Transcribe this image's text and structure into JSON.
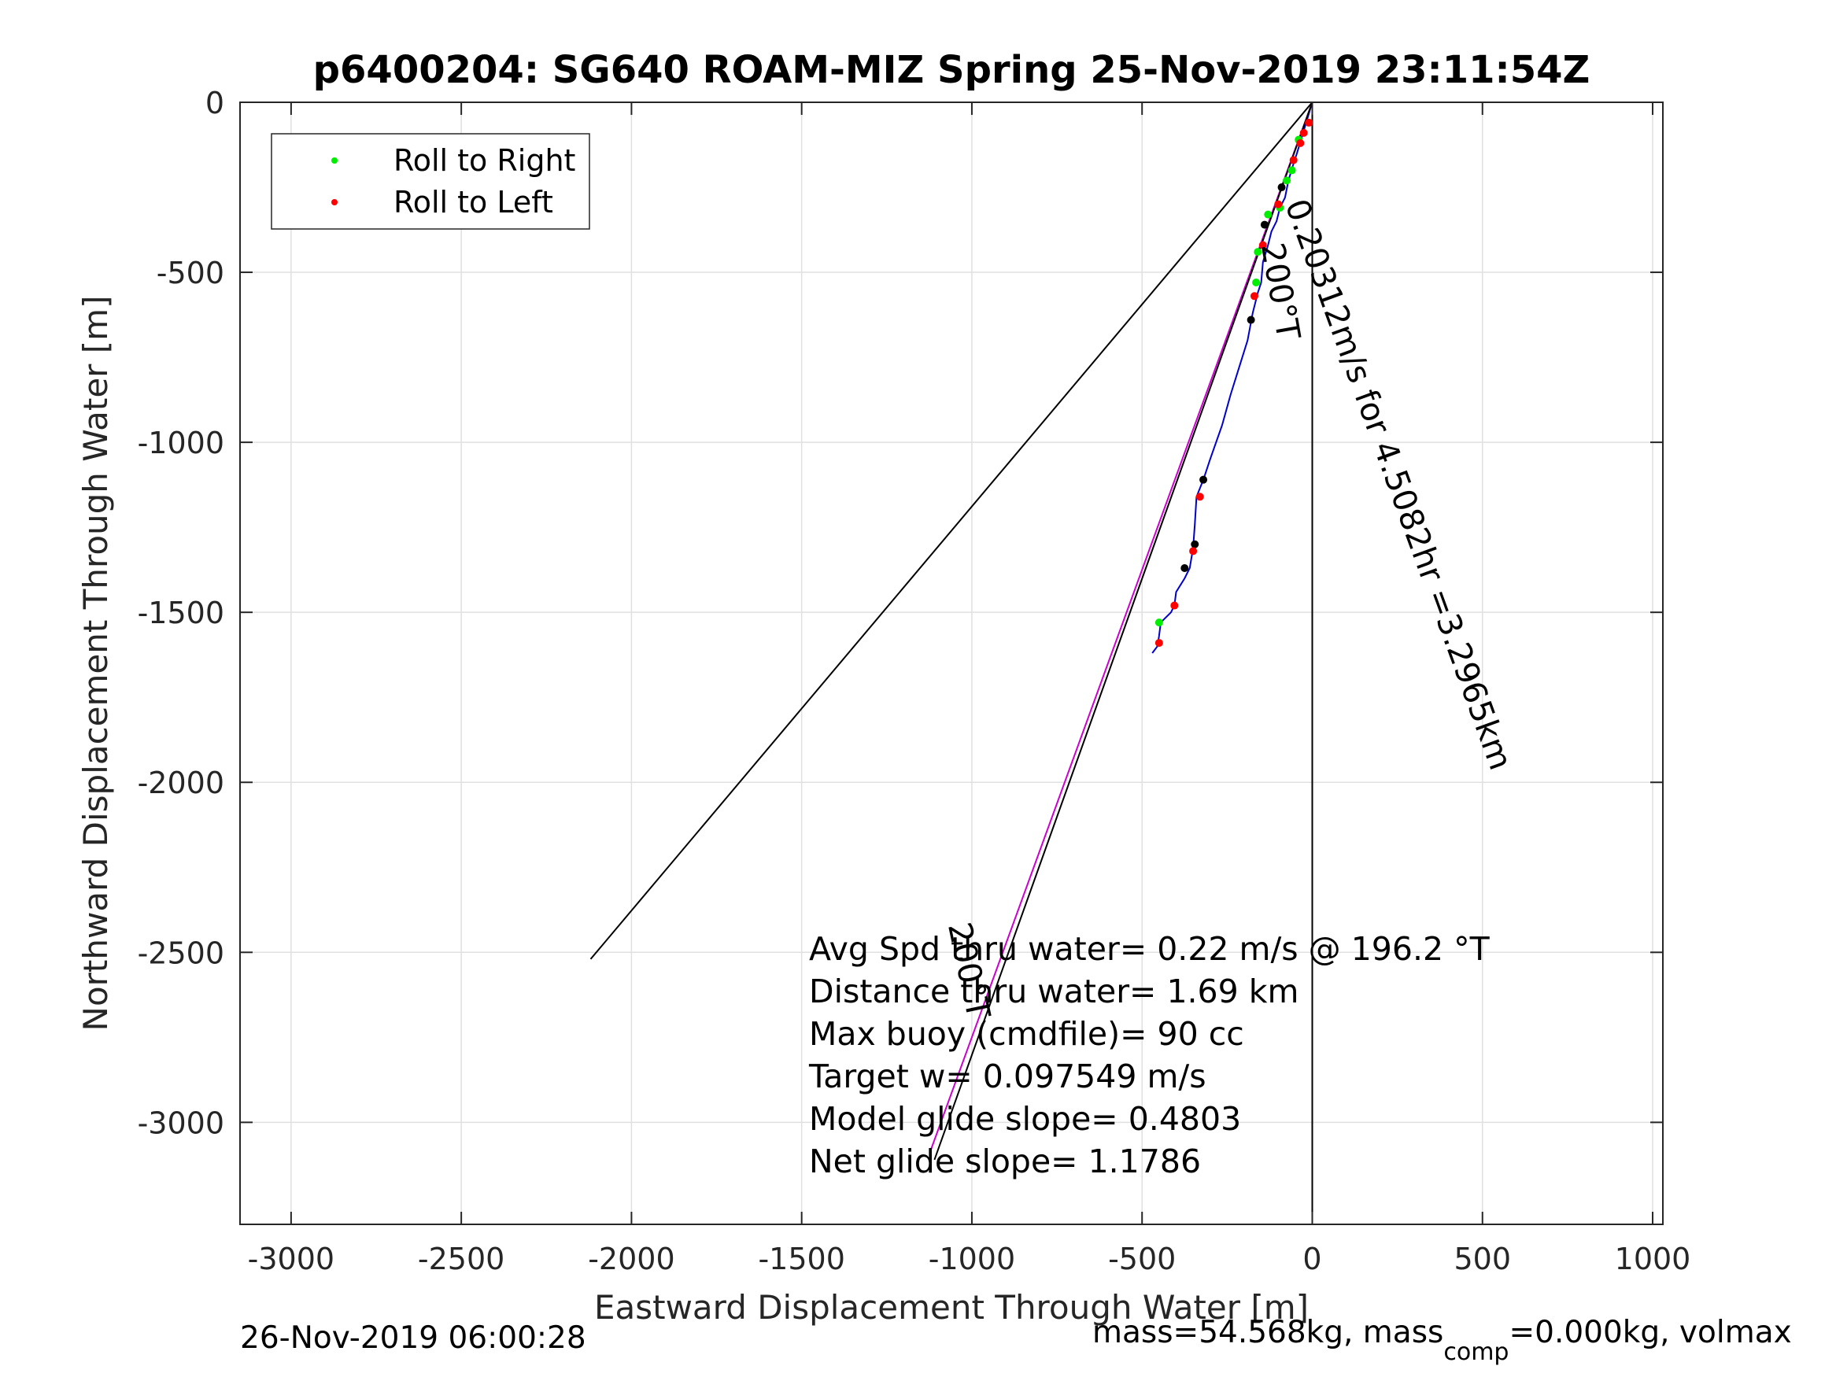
{
  "chart_data": {
    "type": "line",
    "title": "p6400204: SG640 ROAM-MIZ Spring 25-Nov-2019 23:11:54Z",
    "xlabel": "Eastward Displacement Through Water [m]",
    "ylabel": "Northward Displacement Through Water [m]",
    "xlim": [
      -3150,
      1030
    ],
    "ylim": [
      -3300,
      0
    ],
    "xticks": [
      -3000,
      -2500,
      -2000,
      -1500,
      -1000,
      -500,
      0,
      500,
      1000
    ],
    "yticks": [
      0,
      -500,
      -1000,
      -1500,
      -2000,
      -2500,
      -3000
    ],
    "grid": true,
    "legend": {
      "position": "top-left",
      "entries": [
        {
          "label": "Roll to Right",
          "color": "#00ee00"
        },
        {
          "label": "Roll to Left",
          "color": "#ff0000"
        }
      ]
    },
    "series": [
      {
        "style": "track",
        "color": "#0000cc",
        "x": [
          0,
          -12,
          -30,
          -45,
          -55,
          -70,
          -80,
          -95,
          -105,
          -120,
          -130,
          -145,
          -150,
          -160,
          -175,
          -190,
          -215,
          -240,
          -265,
          -300,
          -320,
          -340,
          -345,
          -350,
          -360,
          -375,
          -400,
          -405,
          -415,
          -445,
          -450,
          -455,
          -470
        ],
        "y": [
          0,
          -40,
          -100,
          -150,
          -180,
          -230,
          -280,
          -310,
          -350,
          -380,
          -420,
          -470,
          -530,
          -560,
          -620,
          -700,
          -780,
          -860,
          -950,
          -1050,
          -1110,
          -1160,
          -1240,
          -1310,
          -1370,
          -1400,
          -1440,
          -1480,
          -1500,
          -1530,
          -1570,
          -1600,
          -1620
        ]
      },
      {
        "style": "line",
        "color": "#cc00cc",
        "x": [
          0,
          -1120
        ],
        "y": [
          0,
          -3080
        ]
      },
      {
        "style": "line",
        "color": "#000000",
        "x": [
          0,
          -1110
        ],
        "y": [
          0,
          -3110
        ]
      },
      {
        "style": "line",
        "color": "#000000",
        "x": [
          0,
          -2120
        ],
        "y": [
          0,
          -2520
        ]
      },
      {
        "style": "line",
        "color": "#000000",
        "x": [
          0,
          0
        ],
        "y": [
          0,
          -3300
        ]
      }
    ],
    "points": {
      "roll_right": {
        "color": "#00ee00",
        "x": [
          -40,
          -75,
          -130,
          -160,
          -165,
          -450,
          -95,
          -60
        ],
        "y": [
          -110,
          -230,
          -330,
          -440,
          -530,
          -1530,
          -310,
          -200
        ]
      },
      "roll_left": {
        "color": "#ff0000",
        "x": [
          -25,
          -35,
          -55,
          -100,
          -145,
          -170,
          -330,
          -350,
          -405,
          -450,
          -10
        ],
        "y": [
          -90,
          -120,
          -170,
          -300,
          -420,
          -570,
          -1160,
          -1320,
          -1480,
          -1590,
          -60
        ]
      },
      "neutral": {
        "color": "#000000",
        "x": [
          -90,
          -140,
          -180,
          -320,
          -345,
          -375
        ],
        "y": [
          -250,
          -360,
          -640,
          -1110,
          -1300,
          -1370
        ]
      }
    },
    "annotations": [
      {
        "text": "200°T",
        "x": -150,
        "y": -420,
        "angle": 80
      },
      {
        "text": "0.20312m/s for 4.5082hr =3.2965km",
        "x": -80,
        "y": -300,
        "angle": 70
      },
      {
        "text": "200°T",
        "x": -1070,
        "y": -2420,
        "angle": 78
      }
    ],
    "stats": [
      "Avg Spd thru water=  0.22 m/s @ 196.2 °T",
      "Distance thru water=  1.69 km",
      "Max buoy (cmdfile)= 90 cc",
      "Target w= 0.097549 m/s",
      "Model glide slope= 0.4803",
      "Net glide slope= 1.1786"
    ],
    "footer_left": "26-Nov-2019 06:00:28",
    "footer_right": "mass=54.568kg, mass",
    "footer_right_sub": "comp",
    "footer_right_tail": "=0.000kg, volmax"
  }
}
